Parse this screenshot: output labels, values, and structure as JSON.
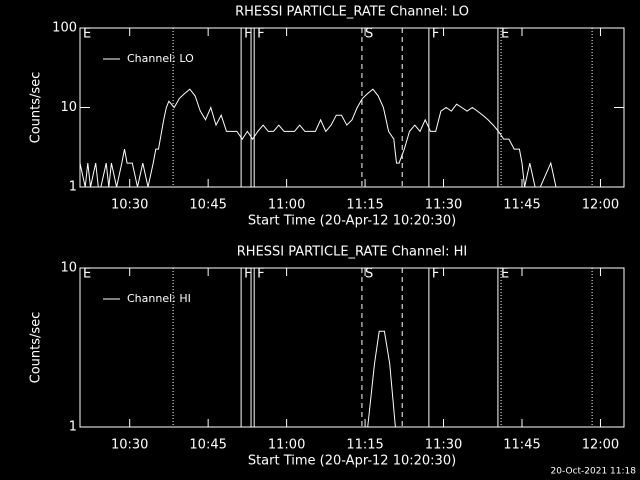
{
  "chart_data": [
    {
      "type": "line",
      "title": "RHESSI PARTICLE_RATE Channel: LO",
      "x_label": "Start Time (20-Apr-12 10:20:30)",
      "y_label": "Counts/sec",
      "log_y": true,
      "legend": "top-left",
      "xlim": [
        0,
        104
      ],
      "ylim": [
        1,
        100
      ],
      "xticks": [
        {
          "value": 9.5,
          "label": "10:30"
        },
        {
          "value": 24.5,
          "label": "10:45"
        },
        {
          "value": 39.5,
          "label": "11:00"
        },
        {
          "value": 54.5,
          "label": "11:15"
        },
        {
          "value": 69.5,
          "label": "11:30"
        },
        {
          "value": 84.5,
          "label": "11:45"
        },
        {
          "value": 99.5,
          "label": "12:00"
        }
      ],
      "yticks": [
        1,
        10,
        100
      ],
      "events": [
        {
          "x": 0,
          "style": "solid",
          "label": "E"
        },
        {
          "x": 17.8,
          "style": "dotted"
        },
        {
          "x": 30.8,
          "style": "solid",
          "label": "F"
        },
        {
          "x": 32.7,
          "style": "solid"
        },
        {
          "x": 33.3,
          "style": "solid",
          "label": "F"
        },
        {
          "x": 53.9,
          "style": "dashed",
          "label": "S"
        },
        {
          "x": 61.6,
          "style": "dashed"
        },
        {
          "x": 66.7,
          "style": "solid",
          "label": "F"
        },
        {
          "x": 79.9,
          "style": "solid",
          "label": "E"
        },
        {
          "x": 80.5,
          "style": "dotted"
        },
        {
          "x": 97.9,
          "style": "dotted"
        }
      ],
      "series": [
        {
          "name": "Channel: LO",
          "color": "#ffffff",
          "x": [
            0,
            1,
            1.5,
            2,
            3,
            3.5,
            4,
            5,
            5.5,
            6,
            7,
            8,
            8.5,
            9,
            10,
            11,
            12,
            13,
            14,
            14.5,
            15,
            16,
            16.5,
            17,
            18,
            19,
            20,
            21,
            22,
            23,
            24,
            25,
            26,
            27,
            28,
            29,
            30,
            31,
            32,
            33,
            34,
            35,
            36,
            37,
            38,
            39,
            40,
            41,
            42,
            43,
            44,
            45,
            46,
            47,
            48,
            49,
            50,
            51,
            52,
            53,
            54,
            55,
            56,
            57,
            58,
            59,
            60,
            60.5,
            61,
            62,
            63,
            64,
            65,
            66,
            67,
            68,
            69,
            70,
            71,
            72,
            73,
            74,
            75,
            76,
            77,
            78,
            79,
            80,
            81,
            82,
            83,
            84,
            84.5,
            85,
            86,
            87,
            88,
            90,
            91,
            92
          ],
          "values": [
            2,
            1,
            2,
            1,
            2,
            1,
            1,
            2,
            1,
            2,
            1,
            2,
            3,
            2,
            2,
            1,
            2,
            1,
            2,
            3,
            3,
            7,
            10,
            12,
            10,
            13,
            15,
            17,
            14,
            9,
            7,
            10,
            6,
            8,
            5,
            5,
            5,
            4,
            5,
            4,
            5,
            6,
            5,
            5,
            6,
            5,
            5,
            5,
            6,
            5,
            5,
            5,
            7,
            5,
            6,
            8,
            8,
            6,
            7,
            10,
            13,
            15,
            17,
            14,
            10,
            5,
            4,
            2,
            2,
            3,
            5,
            6,
            5,
            7,
            5,
            5,
            9,
            10,
            9,
            11,
            10,
            9,
            10,
            9,
            8,
            7,
            6,
            5,
            4,
            4,
            3,
            3,
            2,
            1,
            2,
            1,
            1,
            2,
            1,
            1
          ]
        }
      ]
    },
    {
      "type": "line",
      "title": "RHESSI PARTICLE_RATE Channel: HI",
      "x_label": "Start Time (20-Apr-12 10:20:30)",
      "y_label": "Counts/sec",
      "log_y": true,
      "legend": "top-left",
      "xlim": [
        0,
        104
      ],
      "ylim": [
        1,
        10
      ],
      "xticks": [
        {
          "value": 9.5,
          "label": "10:30"
        },
        {
          "value": 24.5,
          "label": "10:45"
        },
        {
          "value": 39.5,
          "label": "11:00"
        },
        {
          "value": 54.5,
          "label": "11:15"
        },
        {
          "value": 69.5,
          "label": "11:30"
        },
        {
          "value": 84.5,
          "label": "11:45"
        },
        {
          "value": 99.5,
          "label": "12:00"
        }
      ],
      "yticks": [
        1,
        10
      ],
      "events": [
        {
          "x": 0,
          "style": "solid",
          "label": "E"
        },
        {
          "x": 17.8,
          "style": "dotted"
        },
        {
          "x": 30.8,
          "style": "solid",
          "label": "F"
        },
        {
          "x": 32.7,
          "style": "solid"
        },
        {
          "x": 33.3,
          "style": "solid",
          "label": "F"
        },
        {
          "x": 53.9,
          "style": "dashed",
          "label": "S"
        },
        {
          "x": 61.6,
          "style": "dashed"
        },
        {
          "x": 66.7,
          "style": "solid",
          "label": "F"
        },
        {
          "x": 79.9,
          "style": "solid",
          "label": "E"
        },
        {
          "x": 80.5,
          "style": "dotted"
        },
        {
          "x": 97.9,
          "style": "dotted"
        }
      ],
      "series": [
        {
          "name": "Channel: HI",
          "color": "#ffffff",
          "x": [
            55,
            56.3,
            57.2,
            58.2,
            59.2,
            60.3
          ],
          "values": [
            1,
            2.5,
            4,
            4,
            2.5,
            1
          ]
        }
      ]
    }
  ],
  "footer": "20-Oct-2021 11:18"
}
